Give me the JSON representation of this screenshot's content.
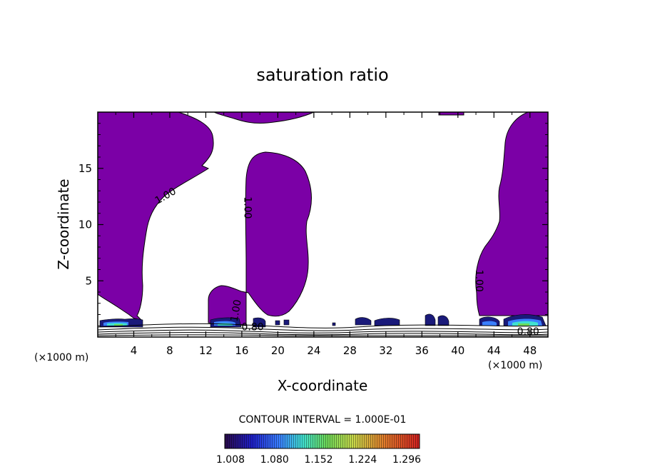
{
  "chart_data": {
    "type": "heatmap",
    "title": "saturation ratio",
    "xlabel": "X-coordinate",
    "ylabel": "Z-coordinate",
    "x_unit": "(×1000 m)",
    "x_unit_right": "(×1000 m)",
    "xlim": [
      0,
      50
    ],
    "ylim": [
      0,
      20
    ],
    "xticks": [
      4,
      8,
      12,
      16,
      20,
      24,
      28,
      32,
      36,
      40,
      44,
      48
    ],
    "yticks": [
      5,
      10,
      15
    ],
    "contour_interval_text": "CONTOUR INTERVAL = 1.000E-01",
    "colorbar_labels": [
      "1.008",
      "1.080",
      "1.152",
      "1.224",
      "1.296"
    ],
    "colorbar_range": [
      1.008,
      1.296
    ],
    "contour_labels": [
      {
        "text": "1.00",
        "x": 7.7,
        "z": 12.3,
        "rotate": -30
      },
      {
        "text": "1.00",
        "x": 16.3,
        "z": 11.5,
        "rotate": 90
      },
      {
        "text": "1.00",
        "x": 15.7,
        "z": 2.3,
        "rotate": -80
      },
      {
        "text": "1.00",
        "x": 42.0,
        "z": 5.0,
        "rotate": 90
      },
      {
        "text": "0.80",
        "x": 17.2,
        "z": 0.6,
        "rotate": 0
      },
      {
        "text": "0.80",
        "x": 47.8,
        "z": 0.2,
        "rotate": 0
      }
    ],
    "colors": {
      "saturated_fill": "#7b00a6",
      "colormap": [
        "#2a0a4a",
        "#1f1fc8",
        "#3a7fff",
        "#40e0d0",
        "#6bd85a",
        "#c8d84a",
        "#e07a2a",
        "#d02020"
      ]
    }
  }
}
